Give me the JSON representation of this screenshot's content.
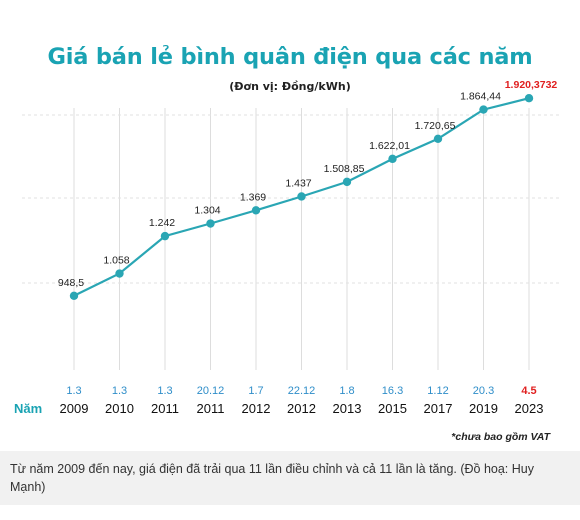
{
  "chart_data": {
    "type": "line",
    "title": "Giá bán lẻ bình quân điện qua các năm",
    "subtitle": "(Đơn vị: Đồng/kWh)",
    "row_label": "Năm",
    "categories": [
      "2009",
      "2010",
      "2011",
      "2011",
      "2012",
      "2012",
      "2013",
      "2015",
      "2017",
      "2019",
      "2023"
    ],
    "adjust_dates": [
      "1.3",
      "1.3",
      "1.3",
      "20.12",
      "1.7",
      "22.12",
      "1.8",
      "16.3",
      "1.12",
      "20.3",
      "4.5"
    ],
    "values": [
      948.5,
      1058,
      1242,
      1304,
      1369,
      1437,
      1508.85,
      1622.01,
      1720.65,
      1864.44,
      1920.3732
    ],
    "value_labels": [
      "948,5",
      "1.058",
      "1.242",
      "1.304",
      "1.369",
      "1.437",
      "1.508,85",
      "1.622,01",
      "1.720,65",
      "1.864,44",
      "1.920,3732"
    ],
    "highlight_index": 10,
    "ylim": [
      500,
      2000
    ],
    "grid": true,
    "colors": {
      "line": "#2aa6b4",
      "title": "#1aa3b3",
      "highlight": "#e02020",
      "date": "#2f8ec9",
      "grid": "#dddddd"
    }
  },
  "footnote": "*chưa bao gồm VAT",
  "caption": "Từ năm 2009 đến nay, giá điện đã trải qua 11 lần điều chỉnh và cả 11 lần là tăng. (Đồ hoạ: Huy Mạnh)"
}
